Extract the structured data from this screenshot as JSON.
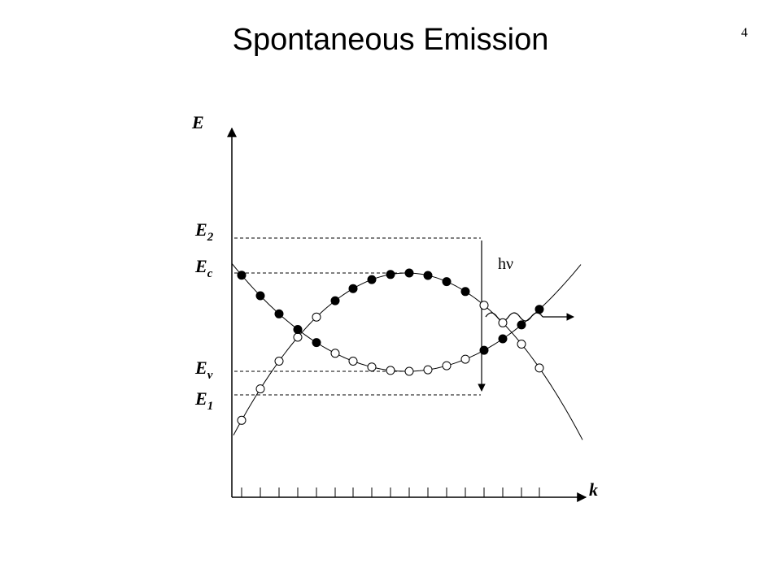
{
  "title": "Spontaneous Emission",
  "slide_number": "4",
  "axes": {
    "y_label": "E",
    "x_label": "k"
  },
  "levels": [
    {
      "id": "E2",
      "main": "E",
      "sub": "2"
    },
    {
      "id": "Ec",
      "main": "E",
      "sub": "c"
    },
    {
      "id": "Ev",
      "main": "E",
      "sub": "v"
    },
    {
      "id": "E1",
      "main": "E",
      "sub": "1"
    }
  ],
  "photon": {
    "main": "h",
    "sub_symbol": "ν"
  },
  "conduction_band_states": [
    "empty",
    "empty",
    "empty",
    "empty",
    "empty",
    "filled",
    "filled",
    "filled",
    "filled",
    "filled",
    "filled",
    "filled",
    "filled",
    "empty",
    "empty",
    "empty",
    "empty"
  ],
  "valence_band_states": [
    "filled",
    "filled",
    "filled",
    "filled",
    "filled",
    "empty",
    "empty",
    "empty",
    "empty",
    "empty",
    "empty",
    "empty",
    "empty",
    "filled",
    "filled",
    "filled",
    "filled"
  ]
}
